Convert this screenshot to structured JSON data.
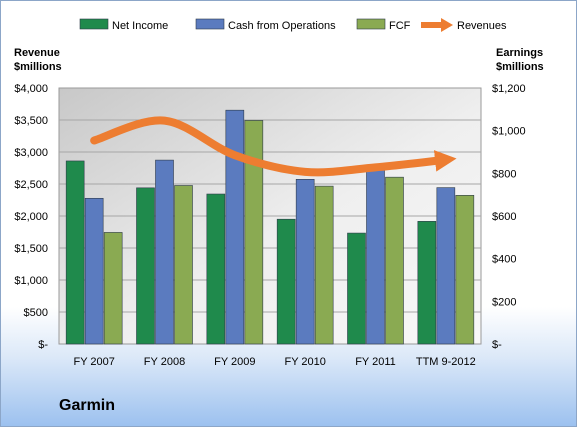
{
  "company": "Garmin",
  "left_axis_title": [
    "Revenue",
    "$millions"
  ],
  "right_axis_title": [
    "Earnings",
    "$millions"
  ],
  "chart_data": {
    "type": "bar",
    "categories": [
      "FY 2007",
      "FY 2008",
      "FY 2009",
      "FY 2010",
      "FY 2011",
      "TTM 9-2012"
    ],
    "series": [
      {
        "name": "Net Income",
        "axis": "right",
        "color": "#1f8a4c",
        "values": [
          858,
          732,
          703,
          585,
          520,
          575
        ]
      },
      {
        "name": "Cash from Operations",
        "axis": "right",
        "color": "#5b7bbf",
        "values": [
          683,
          862,
          1096,
          772,
          815,
          733
        ]
      },
      {
        "name": "FCF",
        "axis": "right",
        "color": "#8aaa52",
        "values": [
          523,
          743,
          1048,
          740,
          782,
          697
        ]
      },
      {
        "name": "Revenues",
        "axis": "left",
        "type": "line",
        "color": "#ed7d31",
        "values": [
          3180,
          3490,
          2950,
          2690,
          2760,
          2880
        ]
      }
    ],
    "y_left": {
      "min": 0,
      "max": 4000,
      "ticks": [
        "$-",
        "$500",
        "$1,000",
        "$1,500",
        "$2,000",
        "$2,500",
        "$3,000",
        "$3,500",
        "$4,000"
      ]
    },
    "y_right": {
      "min": 0,
      "max": 1200,
      "ticks": [
        "$-",
        "$200",
        "$400",
        "$600",
        "$800",
        "$1,000",
        "$1,200"
      ]
    },
    "grid": true,
    "legend": "top"
  }
}
